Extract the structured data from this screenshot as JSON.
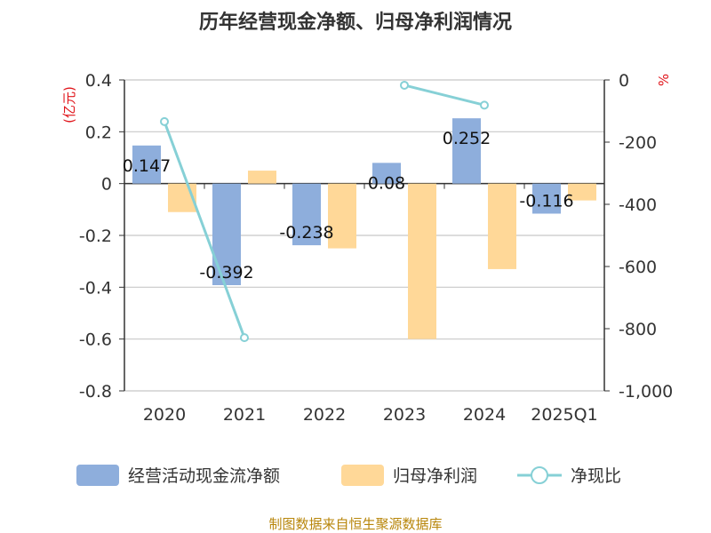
{
  "title": "历年经营现金净额、归母净利润情况",
  "source": "制图数据来自恒生聚源数据库",
  "left_unit": "(亿元)",
  "right_unit": "%",
  "chart_data": {
    "type": "bar",
    "categories": [
      "2020",
      "2021",
      "2022",
      "2023",
      "2024",
      "2025Q1"
    ],
    "ylim_left": [
      -0.8,
      0.4
    ],
    "left_ticks": [
      0.4,
      0.2,
      0,
      -0.2,
      -0.4,
      -0.6,
      -0.8
    ],
    "left_tick_labels": [
      "0.4",
      "0.2",
      "0",
      "-0.2",
      "-0.4",
      "-0.6",
      "-0.8"
    ],
    "ylim_right": [
      -1000,
      0
    ],
    "right_ticks": [
      0,
      -200,
      -400,
      -600,
      -800,
      -1000
    ],
    "right_tick_labels": [
      "0",
      "-200",
      "-400",
      "-600",
      "-800",
      "-1,000"
    ],
    "grid": true,
    "legend_position": "bottom",
    "series": [
      {
        "name": "经营活动现金流净额",
        "type": "bar",
        "axis": "left",
        "color": "#8eaedc",
        "values": [
          0.147,
          -0.392,
          -0.238,
          0.08,
          0.252,
          -0.116
        ],
        "labels": [
          "0.147",
          "-0.392",
          "-0.238",
          "0.08",
          "0.252",
          "-0.116"
        ]
      },
      {
        "name": "归母净利润",
        "type": "bar",
        "axis": "left",
        "color": "#ffd898",
        "values": [
          -0.11,
          0.05,
          -0.25,
          -0.6,
          -0.33,
          -0.065
        ]
      },
      {
        "name": "净现比",
        "type": "line",
        "axis": "right",
        "color": "#86d0d6",
        "values": [
          -134,
          -829,
          null,
          -17,
          -81,
          null
        ]
      }
    ]
  }
}
